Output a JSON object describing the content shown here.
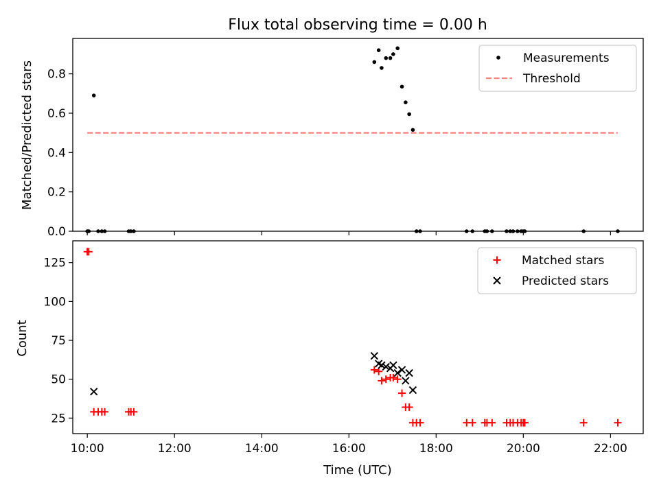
{
  "chart_data": [
    {
      "type": "scatter",
      "title": "Flux total observing time = 0.00 h",
      "xlabel": "",
      "ylabel": "Matched/Predicted stars",
      "xlim": [
        "09:40",
        "22:45"
      ],
      "ylim": [
        0,
        0.98
      ],
      "yticks": [
        "0.0",
        "0.2",
        "0.4",
        "0.6",
        "0.8"
      ],
      "grid": false,
      "legend": "top-right",
      "series": [
        {
          "name": "Measurements",
          "marker": "dot",
          "color": "#000000",
          "x": [
            "10:00",
            "10:02",
            "10:09",
            "10:15",
            "10:20",
            "10:24",
            "10:57",
            "11:00",
            "11:04",
            "16:35",
            "16:41",
            "16:45",
            "16:51",
            "16:57",
            "17:01",
            "17:07",
            "17:13",
            "17:18",
            "17:23",
            "17:28",
            "17:33",
            "17:38",
            "18:42",
            "18:50",
            "19:07",
            "19:10",
            "19:17",
            "19:37",
            "19:42",
            "19:46",
            "19:52",
            "19:57",
            "20:00",
            "20:02",
            "21:23",
            "22:10"
          ],
          "y": [
            0,
            0,
            0.69,
            0,
            0,
            0,
            0,
            0,
            0,
            0.86,
            0.92,
            0.83,
            0.88,
            0.88,
            0.9,
            0.93,
            0.735,
            0.655,
            0.595,
            0.515,
            0,
            0,
            0,
            0,
            0,
            0,
            0,
            0,
            0,
            0,
            0,
            0,
            0,
            0,
            0,
            0
          ]
        },
        {
          "name": "Threshold",
          "line": "dashed",
          "color": "#ff7f7f",
          "x": [
            "10:00",
            "22:10"
          ],
          "y": [
            0.5,
            0.5
          ]
        }
      ]
    },
    {
      "type": "scatter",
      "title": "",
      "xlabel": "Time (UTC)",
      "ylabel": "Count",
      "xlim": [
        "09:40",
        "22:45"
      ],
      "ylim": [
        15,
        139
      ],
      "xticks": [
        "10:00",
        "12:00",
        "14:00",
        "16:00",
        "18:00",
        "20:00",
        "22:00"
      ],
      "yticks": [
        "25",
        "50",
        "75",
        "100",
        "125"
      ],
      "grid": false,
      "legend": "top-right",
      "series": [
        {
          "name": "Matched stars",
          "marker": "plus",
          "color": "#ff0000",
          "x": [
            "10:00",
            "10:02",
            "10:09",
            "10:15",
            "10:20",
            "10:24",
            "10:57",
            "11:00",
            "11:04",
            "16:35",
            "16:41",
            "16:45",
            "16:51",
            "16:57",
            "17:01",
            "17:07",
            "17:13",
            "17:18",
            "17:23",
            "17:28",
            "17:33",
            "17:38",
            "18:42",
            "18:50",
            "19:07",
            "19:10",
            "19:17",
            "19:37",
            "19:42",
            "19:46",
            "19:52",
            "19:57",
            "20:00",
            "20:02",
            "21:23",
            "22:10"
          ],
          "y": [
            132,
            132,
            29,
            29,
            29,
            29,
            29,
            29,
            29,
            56,
            55,
            49,
            50,
            51,
            51,
            50,
            41,
            32,
            32,
            22,
            22,
            22,
            22,
            22,
            22,
            22,
            22,
            22,
            22,
            22,
            22,
            22,
            22,
            22,
            22,
            22
          ]
        },
        {
          "name": "Predicted stars",
          "marker": "x",
          "color": "#000000",
          "x": [
            "10:09",
            "16:35",
            "16:41",
            "16:45",
            "16:51",
            "16:57",
            "17:01",
            "17:07",
            "17:13",
            "17:18",
            "17:23",
            "17:28"
          ],
          "y": [
            42,
            65,
            60,
            59,
            58,
            57,
            59,
            54,
            56,
            49,
            54,
            43
          ]
        }
      ]
    }
  ]
}
